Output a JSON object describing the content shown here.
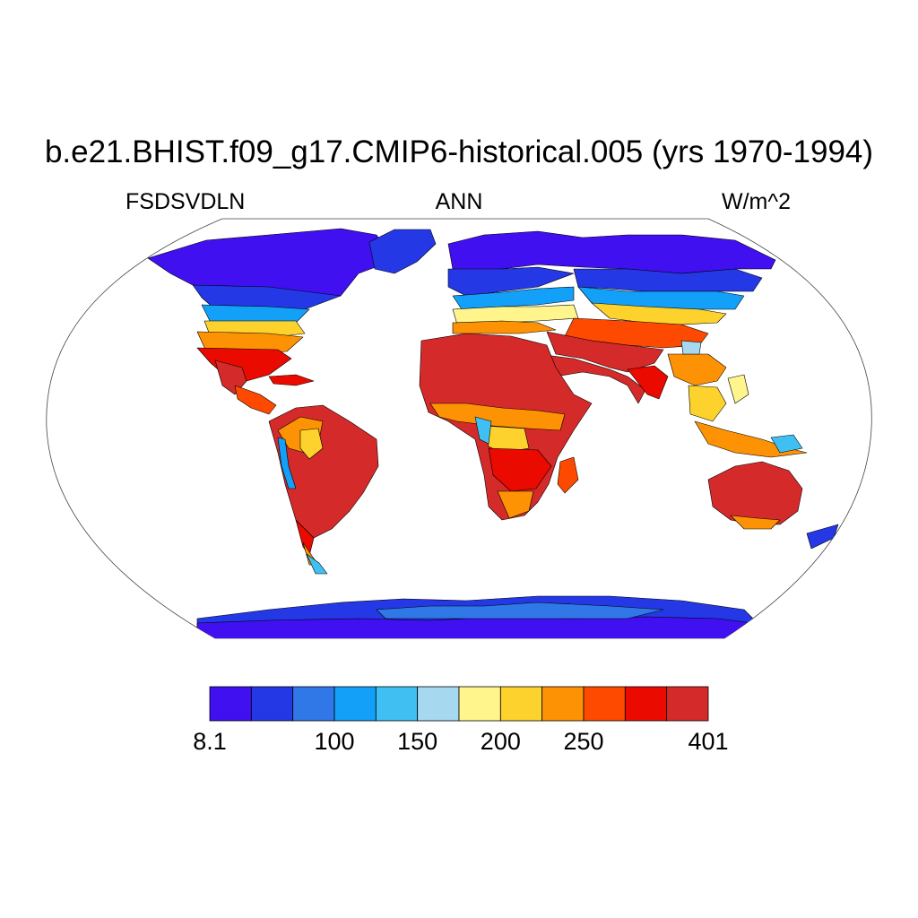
{
  "title": "b.e21.BHIST.f09_g17.CMIP6-historical.005 (yrs 1970-1994)",
  "left_string": "FSDSVDLN",
  "center_string": "ANN",
  "right_string": "W/m^2",
  "projection": "Robinson",
  "colorbar": {
    "colors": [
      "#4010f0",
      "#2438e6",
      "#3078e8",
      "#12a0f8",
      "#40c0f2",
      "#a6d8f0",
      "#fff58c",
      "#fdd22c",
      "#fd9304",
      "#fd4a00",
      "#ea0a00",
      "#d42a2a"
    ],
    "labels": [
      {
        "text": "8.1",
        "index": 0
      },
      {
        "text": "100",
        "index": 3
      },
      {
        "text": "150",
        "index": 5
      },
      {
        "text": "200",
        "index": 7
      },
      {
        "text": "250",
        "index": 9
      },
      {
        "text": "401",
        "index": 12
      }
    ]
  }
}
